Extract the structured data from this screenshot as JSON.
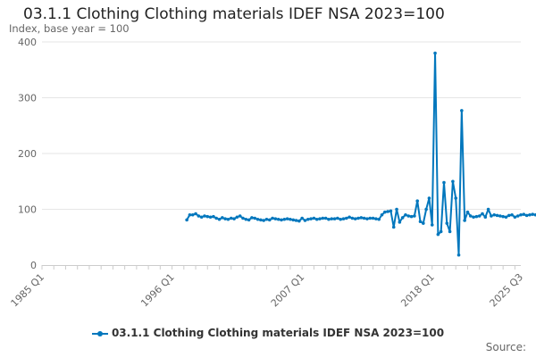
{
  "chart_data": {
    "type": "line",
    "title": "03.1.1 Clothing Clothing materials IDEF NSA 2023=100",
    "subtitle": "Index, base year = 100",
    "xlabel": "",
    "ylabel": "",
    "x_ticks": [
      "1985 Q1",
      "1996 Q1",
      "2007 Q1",
      "2018 Q1",
      "2025 Q3"
    ],
    "xlim": [
      "1985 Q1",
      "2025 Q3"
    ],
    "ylim": [
      0,
      400
    ],
    "y_ticks": [
      0,
      100,
      200,
      300,
      400
    ],
    "grid": "horizontal",
    "legend": "bottom",
    "source_label": "Source:",
    "series": [
      {
        "name": "03.1.1 Clothing Clothing materials IDEF NSA 2023=100",
        "color": "#0277bd",
        "start": "1997 Q2",
        "frequency": "quarterly",
        "values": [
          81,
          90,
          90,
          92,
          88,
          86,
          88,
          87,
          86,
          87,
          84,
          82,
          85,
          83,
          82,
          84,
          83,
          86,
          88,
          84,
          82,
          81,
          85,
          84,
          82,
          81,
          80,
          82,
          81,
          84,
          83,
          82,
          81,
          82,
          83,
          82,
          81,
          80,
          79,
          84,
          80,
          82,
          83,
          84,
          82,
          83,
          84,
          84,
          82,
          83,
          83,
          84,
          82,
          83,
          84,
          86,
          84,
          83,
          84,
          85,
          84,
          83,
          84,
          84,
          83,
          82,
          90,
          95,
          96,
          97,
          68,
          100,
          77,
          85,
          90,
          88,
          87,
          88,
          115,
          78,
          75,
          100,
          120,
          72,
          380,
          55,
          60,
          148,
          75,
          60,
          150,
          120,
          18,
          277,
          80,
          95,
          88,
          86,
          87,
          88,
          92,
          86,
          100,
          88,
          90,
          89,
          88,
          87,
          86,
          89,
          90,
          86,
          88,
          90,
          91,
          89,
          90,
          91,
          90,
          92,
          93,
          95,
          94,
          96,
          98,
          99,
          100,
          101,
          103,
          104,
          103,
          104,
          103,
          104,
          103,
          104,
          103,
          102
        ]
      }
    ]
  }
}
